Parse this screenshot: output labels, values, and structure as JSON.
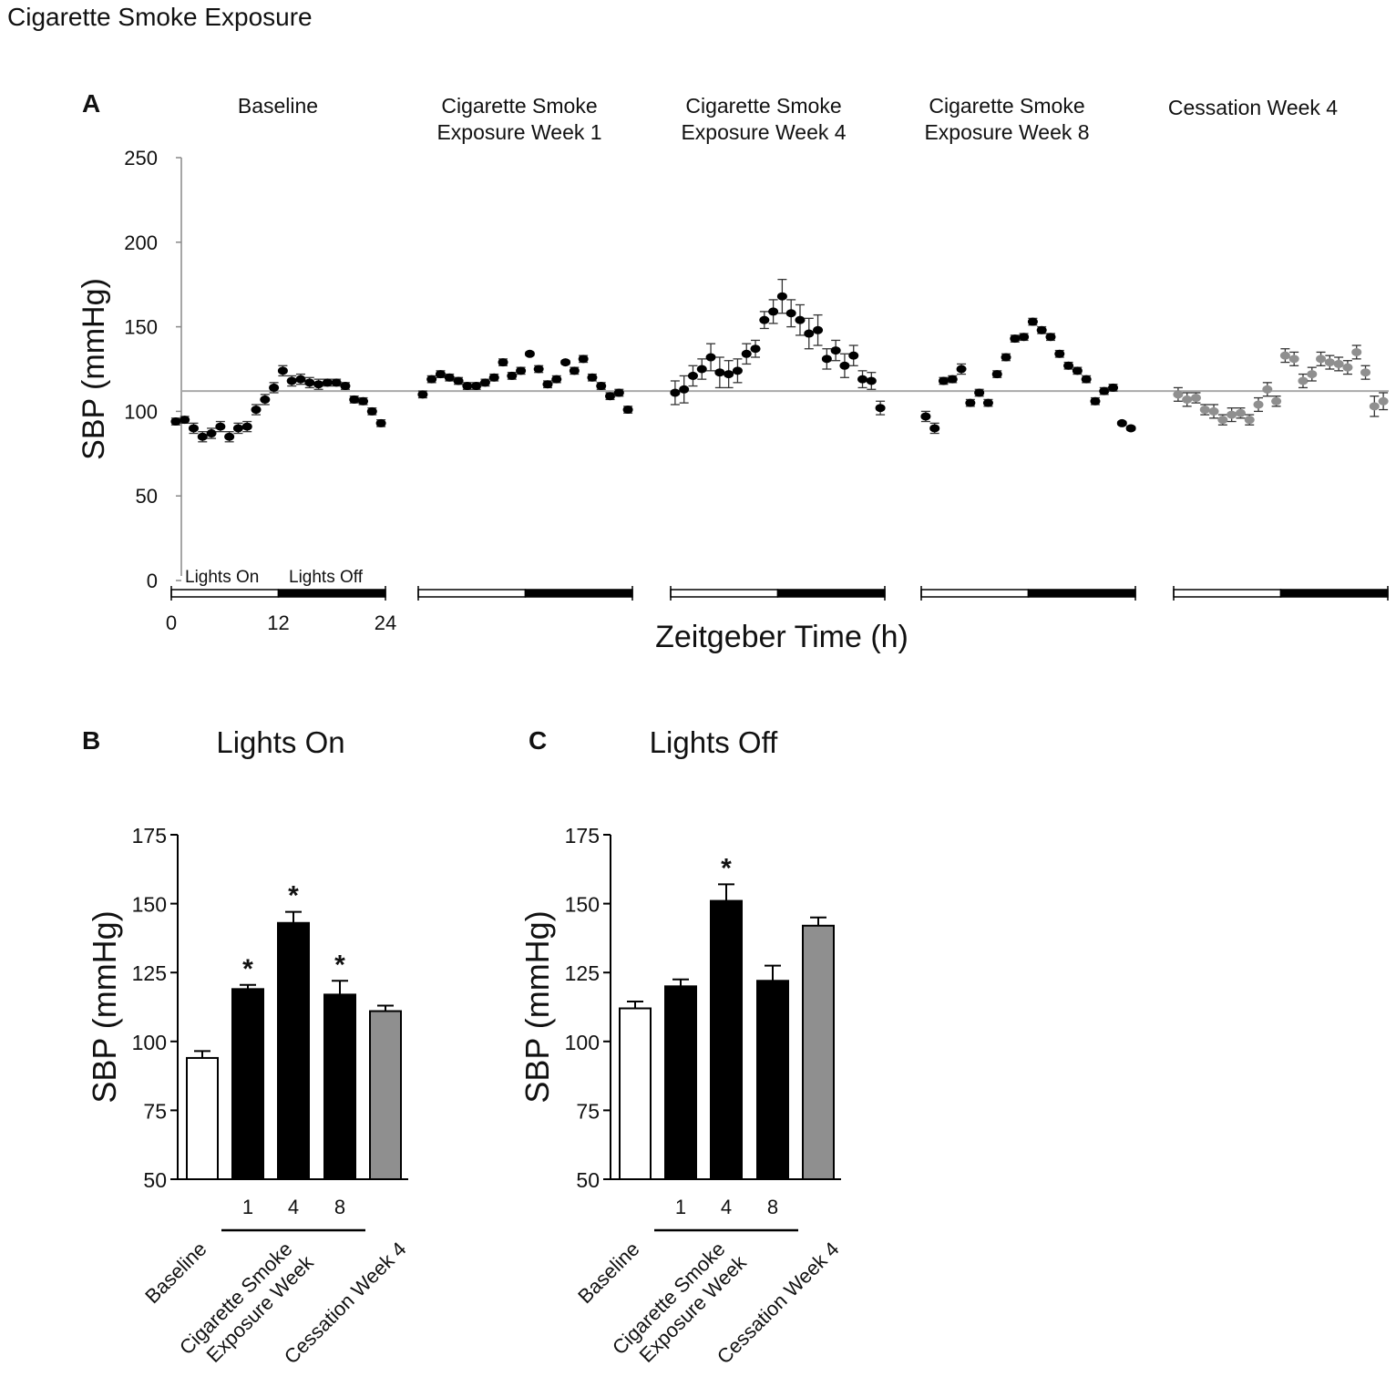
{
  "figure_title": "Cigarette Smoke Exposure",
  "colors": {
    "black": "#000000",
    "grey": "#8f8f8f",
    "white": "#ffffff",
    "baseline_line": "#a9a9a9"
  },
  "chart_data": [
    {
      "panel": "A",
      "type": "scatter",
      "ylabel": "SBP (mmHg)",
      "xlabel": "Zeitgeber Time (h)",
      "ylim": [
        0,
        250
      ],
      "yticks": [
        0,
        50,
        100,
        150,
        200,
        250
      ],
      "xticks": [
        0,
        12,
        24
      ],
      "reference_line": 112,
      "light_labels": [
        "Lights On",
        "Lights Off"
      ],
      "series": [
        {
          "name": "Baseline",
          "title_lines": [
            "Baseline"
          ],
          "color": "black",
          "x": [
            0.5,
            1.5,
            2.5,
            3.5,
            4.5,
            5.5,
            6.5,
            7.5,
            8.5,
            9.5,
            10.5,
            11.5,
            12.5,
            13.5,
            14.5,
            15.5,
            16.5,
            17.5,
            18.5,
            19.5,
            20.5,
            21.5,
            22.5,
            23.5
          ],
          "values": [
            94,
            95,
            90,
            85,
            87,
            91,
            85,
            90,
            91,
            101,
            107,
            114,
            124,
            118,
            119,
            117,
            116,
            117,
            117,
            115,
            107,
            106,
            100,
            93
          ],
          "errors": [
            2,
            2,
            3,
            3,
            3,
            3,
            3,
            3,
            3,
            3,
            3,
            3,
            3,
            3,
            3,
            3,
            3,
            2,
            2,
            2,
            2,
            2,
            2,
            2
          ]
        },
        {
          "name": "Cigarette Smoke Exposure Week 1",
          "title_lines": [
            "Cigarette Smoke",
            "Exposure Week 1"
          ],
          "color": "black",
          "x": [
            0.5,
            1.5,
            2.5,
            3.5,
            4.5,
            5.5,
            6.5,
            7.5,
            8.5,
            9.5,
            10.5,
            11.5,
            12.5,
            13.5,
            14.5,
            15.5,
            16.5,
            17.5,
            18.5,
            19.5,
            20.5,
            21.5,
            22.5,
            23.5
          ],
          "values": [
            110,
            119,
            122,
            120,
            118,
            115,
            115,
            117,
            120,
            129,
            121,
            124,
            134,
            125,
            116,
            119,
            129,
            124,
            131,
            120,
            115,
            109,
            111,
            101
          ],
          "errors": [
            2,
            2,
            2,
            2,
            2,
            2,
            2,
            2,
            2,
            2,
            2,
            2,
            1,
            2,
            2,
            2,
            1,
            2,
            2,
            2,
            2,
            2,
            2,
            2
          ]
        },
        {
          "name": "Cigarette Smoke Exposure Week 4",
          "title_lines": [
            "Cigarette Smoke",
            "Exposure Week 4"
          ],
          "color": "black",
          "x": [
            0.5,
            1.5,
            2.5,
            3.5,
            4.5,
            5.5,
            6.5,
            7.5,
            8.5,
            9.5,
            10.5,
            11.5,
            12.5,
            13.5,
            14.5,
            15.5,
            16.5,
            17.5,
            18.5,
            19.5,
            20.5,
            21.5,
            22.5,
            23.5
          ],
          "values": [
            111,
            113,
            121,
            125,
            132,
            123,
            122,
            124,
            134,
            137,
            154,
            159,
            168,
            158,
            154,
            146,
            148,
            131,
            136,
            127,
            133,
            119,
            118,
            102
          ],
          "errors": [
            7,
            8,
            6,
            6,
            8,
            9,
            8,
            7,
            6,
            5,
            5,
            7,
            10,
            8,
            9,
            9,
            9,
            6,
            6,
            7,
            6,
            5,
            5,
            4
          ]
        },
        {
          "name": "Cigarette Smoke Exposure Week 8",
          "title_lines": [
            "Cigarette Smoke",
            "Exposure Week 8"
          ],
          "color": "black",
          "x": [
            0.5,
            1.5,
            2.5,
            3.5,
            4.5,
            5.5,
            6.5,
            7.5,
            8.5,
            9.5,
            10.5,
            11.5,
            12.5,
            13.5,
            14.5,
            15.5,
            16.5,
            17.5,
            18.5,
            19.5,
            20.5,
            21.5,
            22.5,
            23.5
          ],
          "values": [
            97,
            90,
            118,
            119,
            125,
            105,
            111,
            105,
            122,
            132,
            143,
            144,
            153,
            148,
            144,
            134,
            127,
            124,
            119,
            106,
            112,
            114,
            93,
            90
          ],
          "errors": [
            3,
            3,
            2,
            2,
            3,
            2,
            2,
            2,
            2,
            2,
            2,
            2,
            2,
            2,
            2,
            2,
            2,
            2,
            2,
            2,
            2,
            2,
            1,
            1
          ]
        },
        {
          "name": "Cessation Week 4",
          "title_lines": [
            "Cessation Week 4"
          ],
          "color": "grey",
          "x": [
            0.5,
            1.5,
            2.5,
            3.5,
            4.5,
            5.5,
            6.5,
            7.5,
            8.5,
            9.5,
            10.5,
            11.5,
            12.5,
            13.5,
            14.5,
            15.5,
            16.5,
            17.5,
            18.5,
            19.5,
            20.5,
            21.5,
            22.5,
            23.5
          ],
          "values": [
            110,
            107,
            108,
            101,
            100,
            95,
            98,
            99,
            95,
            104,
            113,
            106,
            133,
            131,
            118,
            122,
            131,
            129,
            128,
            126,
            135,
            123,
            103,
            106
          ],
          "errors": [
            4,
            4,
            3,
            3,
            4,
            3,
            4,
            3,
            3,
            4,
            4,
            3,
            4,
            4,
            4,
            4,
            4,
            4,
            4,
            4,
            4,
            4,
            6,
            5
          ]
        }
      ]
    },
    {
      "panel": "B",
      "type": "bar",
      "title": "Lights On",
      "ylabel": "SBP (mmHg)",
      "ylim": [
        50,
        175
      ],
      "yticks": [
        50,
        75,
        100,
        125,
        150,
        175
      ],
      "categories": [
        "Baseline",
        "1",
        "4",
        "8",
        "Cessation Week 4"
      ],
      "values": [
        94,
        119,
        143,
        117,
        111
      ],
      "errors": [
        2.5,
        1.5,
        4,
        5,
        2
      ],
      "fills": [
        "white",
        "black",
        "black",
        "black",
        "grey"
      ],
      "significant": [
        "",
        "*",
        "*",
        "*",
        ""
      ],
      "x_labels": {
        "baseline": "Baseline",
        "week_numbers": [
          "1",
          "4",
          "8"
        ],
        "group_lines": [
          "Cigarette Smoke",
          "Exposure Week"
        ],
        "cessation": "Cessation Week 4"
      }
    },
    {
      "panel": "C",
      "type": "bar",
      "title": "Lights Off",
      "ylabel": "SBP (mmHg)",
      "ylim": [
        50,
        175
      ],
      "yticks": [
        50,
        75,
        100,
        125,
        150,
        175
      ],
      "categories": [
        "Baseline",
        "1",
        "4",
        "8",
        "Cessation Week 4"
      ],
      "values": [
        112,
        120,
        151,
        122,
        142
      ],
      "errors": [
        2.5,
        2.5,
        6,
        5.5,
        3
      ],
      "fills": [
        "white",
        "black",
        "black",
        "black",
        "grey"
      ],
      "significant": [
        "",
        "",
        "*",
        "",
        ""
      ],
      "x_labels": {
        "baseline": "Baseline",
        "week_numbers": [
          "1",
          "4",
          "8"
        ],
        "group_lines": [
          "Cigarette Smoke",
          "Exposure Week"
        ],
        "cessation": "Cessation Week 4"
      }
    }
  ]
}
